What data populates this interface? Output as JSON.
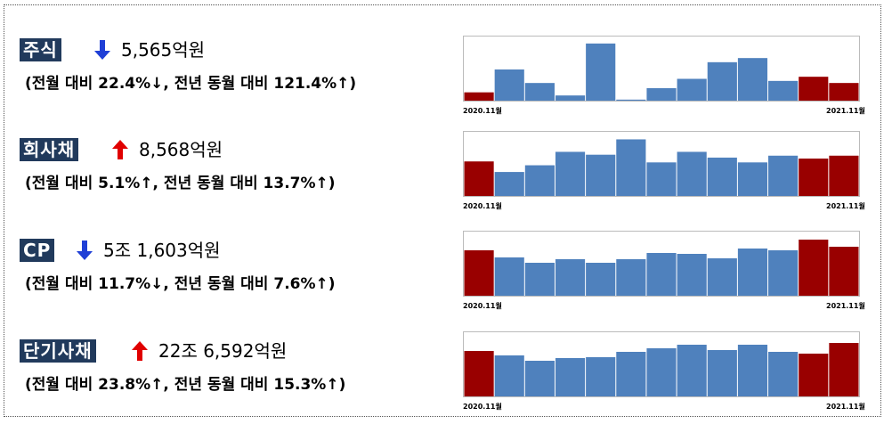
{
  "colors": {
    "label_bg": "#213a5c",
    "up": "#e00000",
    "down": "#1f3fd6",
    "bar_highlight": "#990000",
    "bar_normal": "#4f81bd"
  },
  "chart_data": [
    {
      "type": "bar",
      "label": "주식",
      "trend": "down",
      "amount": "5,565억원",
      "sub": "(전월 대비 22.4%↓, 전년 동월 대비 121.4%↑)",
      "x_start": "2020.11월",
      "x_end": "2021.11월",
      "values": [
        8,
        30,
        17,
        5,
        55,
        1,
        12,
        21,
        37,
        41,
        19,
        23,
        17
      ],
      "highlight": [
        0,
        11,
        12
      ],
      "ylim": [
        0,
        60
      ]
    },
    {
      "type": "bar",
      "label": "회사채",
      "trend": "up",
      "amount": "8,568억원",
      "sub": "(전월 대비 5.1%↑, 전년 동월 대비 13.7%↑)",
      "x_start": "2020.11월",
      "x_end": "2021.11월",
      "values": [
        36,
        25,
        32,
        46,
        43,
        59,
        35,
        46,
        40,
        35,
        42,
        39,
        42
      ],
      "highlight": [
        0,
        11,
        12
      ],
      "ylim": [
        0,
        65
      ]
    },
    {
      "type": "bar",
      "label": "CP",
      "trend": "down",
      "amount": "5조 1,603억원",
      "sub": "(전월 대비 11.7%↓, 전년 동월 대비 7.6%↑)",
      "x_start": "2020.11월",
      "x_end": "2021.11월",
      "values": [
        51,
        43,
        37,
        41,
        37,
        41,
        48,
        47,
        42,
        53,
        51,
        63,
        55
      ],
      "highlight": [
        0,
        11,
        12
      ],
      "ylim": [
        0,
        70
      ]
    },
    {
      "type": "bar",
      "label": "단기사채",
      "trend": "up",
      "amount": "22조 6,592억원",
      "sub": "(전월 대비 23.8%↑, 전년 동월 대비 15.3%↑)",
      "x_start": "2020.11월",
      "x_end": "2021.11월",
      "values": [
        51,
        46,
        40,
        43,
        44,
        50,
        54,
        58,
        52,
        58,
        50,
        48,
        60
      ],
      "highlight": [
        0,
        11,
        12
      ],
      "ylim": [
        0,
        70
      ]
    }
  ]
}
